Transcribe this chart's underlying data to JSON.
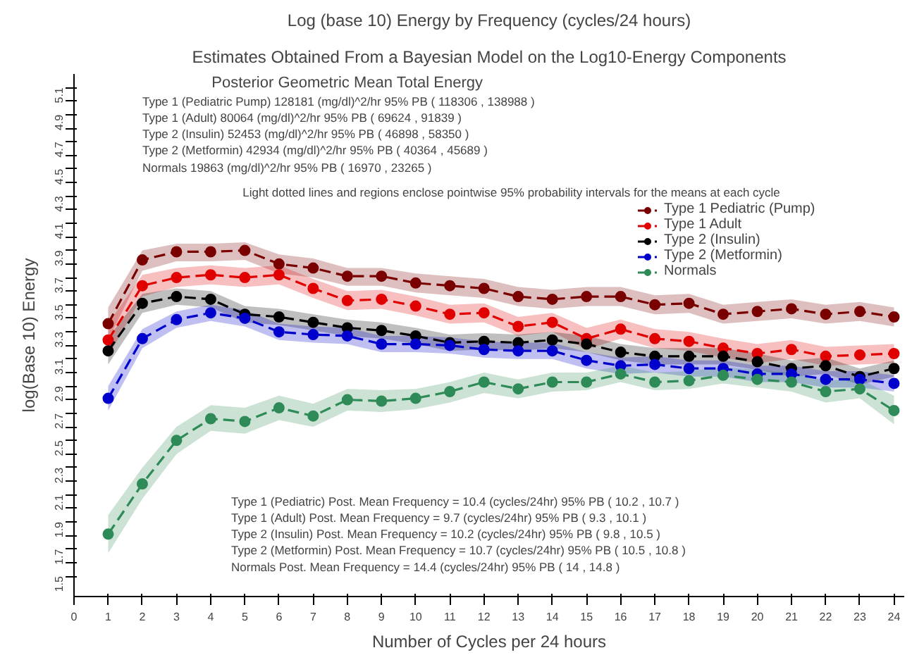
{
  "chart_data": {
    "type": "line",
    "title": "Log (base 10) Energy by Frequency (cycles/24 hours)",
    "subtitle": "Estimates Obtained From a Bayesian Model on the Log10-Energy Components",
    "xlabel": "Number of Cycles per 24 hours",
    "ylabel": "log(Base 10) Energy",
    "x": [
      1,
      2,
      3,
      4,
      5,
      6,
      7,
      8,
      9,
      10,
      11,
      12,
      13,
      14,
      15,
      16,
      17,
      18,
      19,
      20,
      21,
      22,
      23,
      24
    ],
    "xlim": [
      0,
      24.3
    ],
    "xticks": [
      0,
      1,
      2,
      3,
      4,
      5,
      6,
      7,
      8,
      9,
      10,
      11,
      12,
      13,
      14,
      15,
      16,
      17,
      18,
      19,
      20,
      21,
      22,
      23,
      24
    ],
    "ylim": [
      1.35,
      5.2
    ],
    "yticks": [
      1.5,
      {
        "value": 1.6,
        "label": null
      },
      1.7,
      {
        "value": 1.8,
        "label": null
      },
      1.9,
      {
        "value": 2.0,
        "label": null
      },
      2.1,
      {
        "value": 2.2,
        "label": null
      },
      2.3,
      {
        "value": 2.4,
        "label": null
      },
      2.5,
      {
        "value": 2.6,
        "label": null
      },
      2.7,
      {
        "value": 2.8,
        "label": null
      },
      2.9,
      {
        "value": 3.0,
        "label": null
      },
      3.1,
      {
        "value": 3.2,
        "label": null
      },
      3.3,
      {
        "value": 3.4,
        "label": null
      },
      3.5,
      {
        "value": 3.6,
        "label": null
      },
      3.7,
      {
        "value": 3.8,
        "label": null
      },
      3.9,
      {
        "value": 4.0,
        "label": null
      },
      4.1,
      {
        "value": 4.2,
        "label": null
      },
      4.3,
      {
        "value": 4.4,
        "label": null
      },
      4.5,
      {
        "value": 4.6,
        "label": null
      },
      4.7,
      {
        "value": 4.8,
        "label": null
      },
      4.9,
      {
        "value": 5.0,
        "label": null
      },
      5.1
    ],
    "grid": false,
    "legend": "top right",
    "marker": "circle",
    "line_style": "dashed",
    "series": [
      {
        "name": "Type 1 Pediatric (Pump)",
        "color": "#7a0000",
        "values": [
          3.36,
          3.83,
          3.89,
          3.89,
          3.9,
          3.8,
          3.77,
          3.71,
          3.71,
          3.66,
          3.64,
          3.62,
          3.56,
          3.54,
          3.56,
          3.56,
          3.5,
          3.51,
          3.43,
          3.45,
          3.47,
          3.43,
          3.45,
          3.41
        ],
        "upper": [
          3.48,
          3.9,
          3.95,
          3.95,
          3.96,
          3.87,
          3.84,
          3.77,
          3.77,
          3.73,
          3.71,
          3.69,
          3.63,
          3.61,
          3.63,
          3.63,
          3.57,
          3.58,
          3.5,
          3.52,
          3.54,
          3.5,
          3.52,
          3.48
        ],
        "lower": [
          3.24,
          3.75,
          3.82,
          3.82,
          3.83,
          3.73,
          3.7,
          3.64,
          3.64,
          3.59,
          3.57,
          3.55,
          3.49,
          3.47,
          3.49,
          3.49,
          3.43,
          3.44,
          3.36,
          3.38,
          3.4,
          3.36,
          3.38,
          3.34
        ]
      },
      {
        "name": "Type 1 Adult",
        "color": "#e00000",
        "values": [
          3.24,
          3.64,
          3.7,
          3.72,
          3.7,
          3.72,
          3.62,
          3.53,
          3.54,
          3.49,
          3.43,
          3.44,
          3.34,
          3.37,
          3.25,
          3.32,
          3.25,
          3.23,
          3.18,
          3.14,
          3.17,
          3.12,
          3.13,
          3.14
        ],
        "upper": [
          3.36,
          3.72,
          3.77,
          3.79,
          3.77,
          3.79,
          3.69,
          3.6,
          3.61,
          3.56,
          3.5,
          3.51,
          3.41,
          3.44,
          3.33,
          3.39,
          3.32,
          3.3,
          3.25,
          3.21,
          3.24,
          3.19,
          3.2,
          3.21
        ],
        "lower": [
          3.12,
          3.56,
          3.63,
          3.65,
          3.63,
          3.65,
          3.55,
          3.46,
          3.47,
          3.42,
          3.36,
          3.37,
          3.27,
          3.3,
          3.17,
          3.25,
          3.18,
          3.16,
          3.11,
          3.07,
          3.1,
          3.05,
          3.06,
          3.07
        ]
      },
      {
        "name": "Type 2 (Insulin)",
        "color": "#000000",
        "values": [
          3.16,
          3.51,
          3.56,
          3.54,
          3.43,
          3.41,
          3.37,
          3.33,
          3.31,
          3.27,
          3.22,
          3.23,
          3.22,
          3.24,
          3.21,
          3.15,
          3.12,
          3.12,
          3.12,
          3.08,
          3.03,
          3.05,
          2.97,
          3.03
        ],
        "upper": [
          3.26,
          3.58,
          3.62,
          3.6,
          3.49,
          3.47,
          3.43,
          3.39,
          3.37,
          3.33,
          3.28,
          3.29,
          3.28,
          3.3,
          3.27,
          3.21,
          3.18,
          3.18,
          3.18,
          3.14,
          3.09,
          3.11,
          3.03,
          3.09
        ],
        "lower": [
          3.06,
          3.44,
          3.5,
          3.48,
          3.37,
          3.35,
          3.31,
          3.27,
          3.25,
          3.21,
          3.16,
          3.17,
          3.16,
          3.18,
          3.15,
          3.09,
          3.06,
          3.06,
          3.06,
          3.02,
          2.97,
          2.99,
          2.91,
          2.97
        ]
      },
      {
        "name": "Type 2 (Metformin)",
        "color": "#0000cc",
        "values": [
          2.81,
          3.25,
          3.39,
          3.44,
          3.4,
          3.3,
          3.28,
          3.27,
          3.21,
          3.21,
          3.2,
          3.17,
          3.16,
          3.16,
          3.09,
          3.05,
          3.06,
          3.03,
          3.03,
          2.99,
          2.99,
          2.95,
          2.95,
          2.92
        ],
        "upper": [
          2.9,
          3.32,
          3.45,
          3.5,
          3.46,
          3.36,
          3.34,
          3.33,
          3.27,
          3.27,
          3.26,
          3.23,
          3.22,
          3.22,
          3.15,
          3.11,
          3.12,
          3.09,
          3.09,
          3.05,
          3.05,
          3.01,
          3.01,
          2.98
        ],
        "lower": [
          2.72,
          3.18,
          3.33,
          3.38,
          3.34,
          3.24,
          3.22,
          3.21,
          3.15,
          3.15,
          3.14,
          3.11,
          3.1,
          3.1,
          3.03,
          2.99,
          3.0,
          2.97,
          2.97,
          2.93,
          2.93,
          2.89,
          2.89,
          2.86
        ]
      },
      {
        "name": "Normals",
        "color": "#2e8b57",
        "values": [
          1.81,
          2.18,
          2.5,
          2.66,
          2.64,
          2.74,
          2.68,
          2.8,
          2.79,
          2.81,
          2.86,
          2.93,
          2.88,
          2.93,
          2.93,
          2.99,
          2.93,
          2.94,
          2.98,
          2.95,
          2.93,
          2.86,
          2.88,
          2.72
        ],
        "upper": [
          1.95,
          2.3,
          2.6,
          2.76,
          2.74,
          2.83,
          2.77,
          2.88,
          2.87,
          2.88,
          2.93,
          3.0,
          2.95,
          3.0,
          3.0,
          3.05,
          3.0,
          3.01,
          3.04,
          3.02,
          3.0,
          2.94,
          2.95,
          2.83
        ],
        "lower": [
          1.67,
          2.07,
          2.4,
          2.57,
          2.55,
          2.65,
          2.6,
          2.72,
          2.71,
          2.73,
          2.78,
          2.85,
          2.81,
          2.86,
          2.87,
          2.93,
          2.87,
          2.88,
          2.92,
          2.89,
          2.86,
          2.78,
          2.81,
          2.62
        ]
      }
    ],
    "annotations": [
      "Posterior Geometric Mean Total Energy",
      "Type 1 (Pediatric Pump)     128181 (mg/dl)^2/hr  95% PB ( 118306 , 138988 )",
      "Type 1 (Adult)                     80064 (mg/dl)^2/hr  95% PB ( 69624 , 91839 )",
      "Type 2 (Insulin)                  52453 (mg/dl)^2/hr  95% PB ( 46898 , 58350 )",
      "Type 2 (Metformin)              42934 (mg/dl)^2/hr  95% PB ( 40364 , 45689 )",
      "Normals                             19863 (mg/dl)^2/hr  95% PB ( 16970 , 23265 )",
      "Light dotted lines and regions enclose pointwise 95% probability intervals for the means at each cycle",
      "Type 1 (Pediatric)   Post. Mean Frequency = 10.4 (cycles/24hr)  95% PB ( 10.2 , 10.7 )",
      "Type 1 (Adult)        Post. Mean Frequency = 9.7 (cycles/24hr)  95% PB ( 9.3 , 10.1 )",
      "Type 2 (Insulin)      Post. Mean Frequency = 10.2 (cycles/24hr)  95% PB ( 9.8 , 10.5 )",
      "Type 2 (Metformin) Post. Mean Frequency = 10.7 (cycles/24hr)  95% PB ( 10.5 , 10.8 )",
      "Normals               Post. Mean Frequency = 14.4 (cycles/24hr)  95% PB ( 14 , 14.8 )"
    ]
  }
}
